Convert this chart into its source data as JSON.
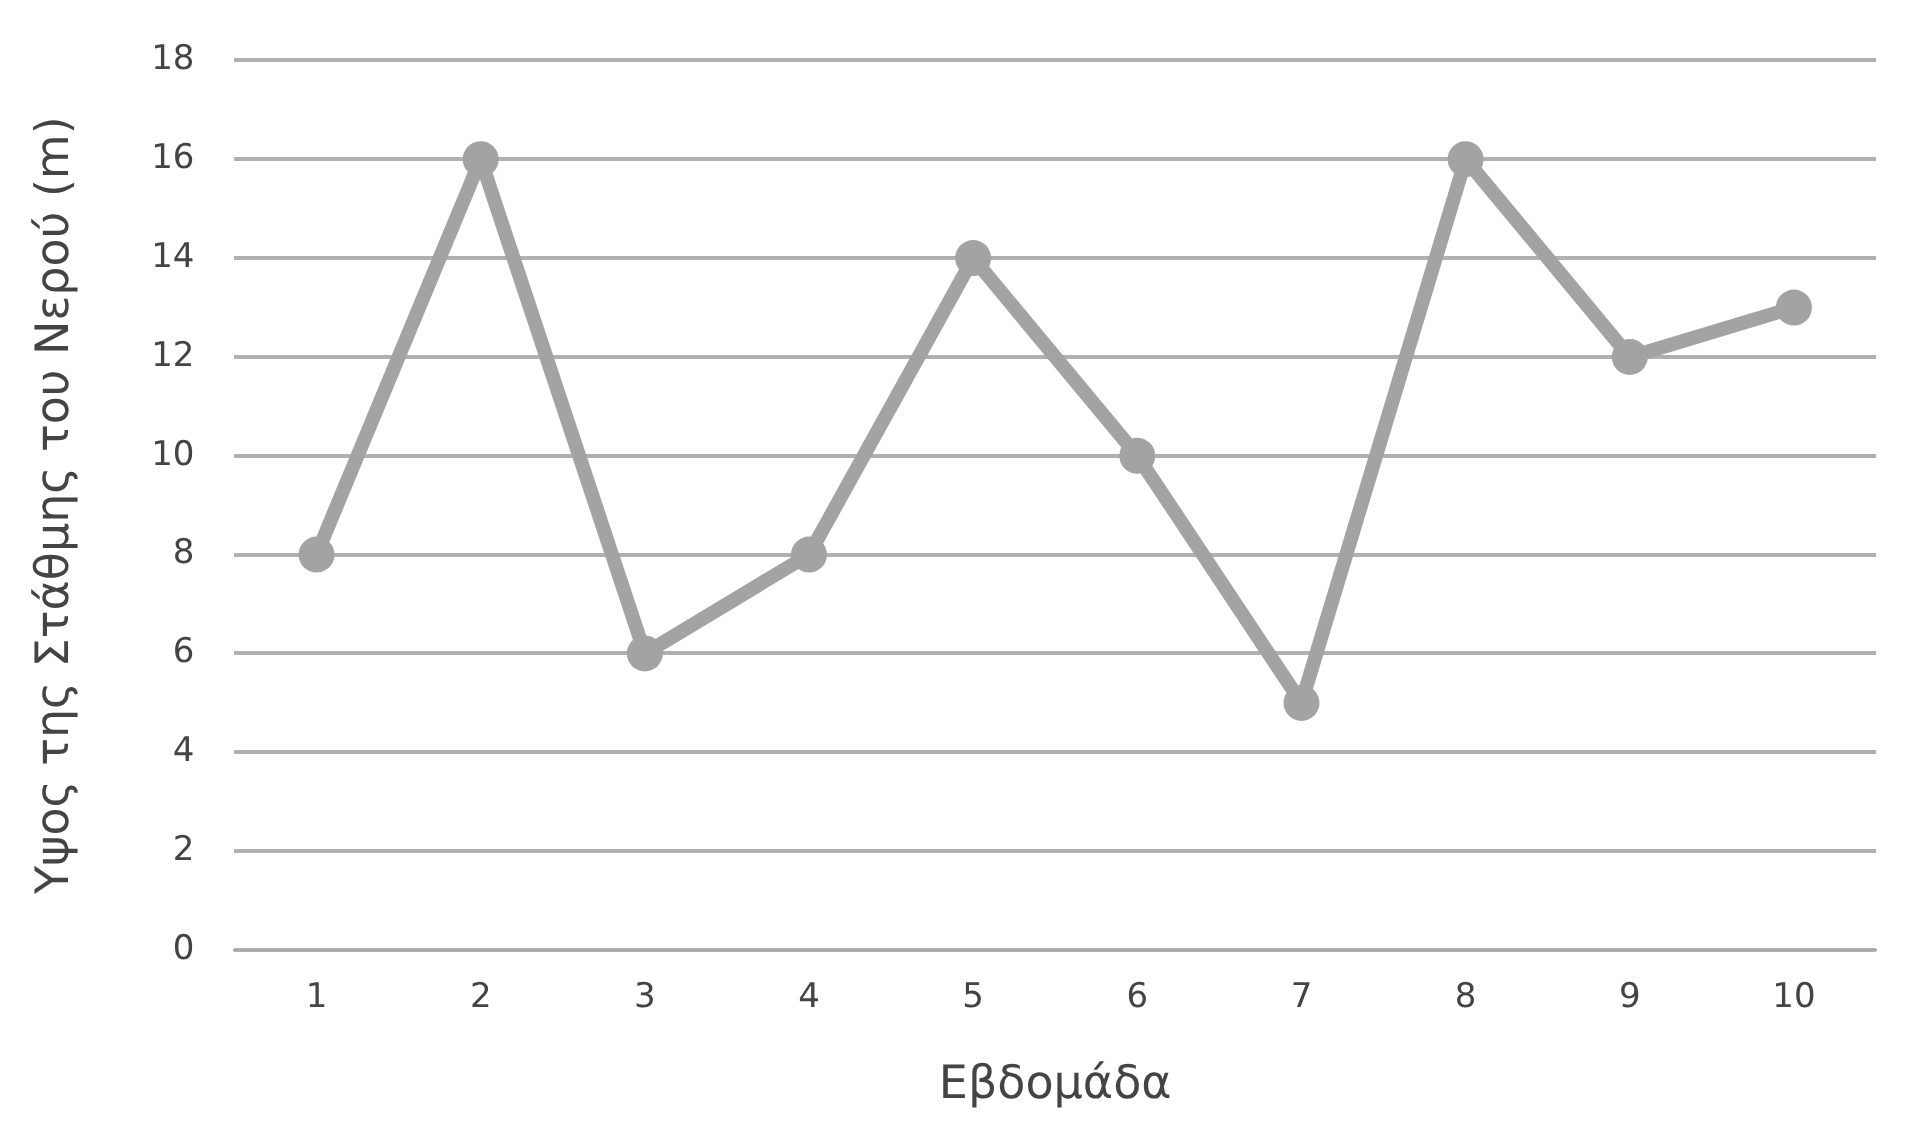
{
  "chart_data": {
    "type": "line",
    "xlabel": "Εβδομάδα",
    "ylabel": "Υψος της Στάθμης του Νερού (m)",
    "categories": [
      "1",
      "2",
      "3",
      "4",
      "5",
      "6",
      "7",
      "8",
      "9",
      "10"
    ],
    "series": [
      {
        "color": "#a3a3a3",
        "values": [
          8,
          16,
          6,
          8,
          14,
          10,
          5,
          16,
          12,
          13
        ]
      }
    ],
    "ylim": [
      0,
      18
    ],
    "yticks": [
      0,
      2,
      4,
      6,
      8,
      10,
      12,
      14,
      16,
      18
    ],
    "grid": "y",
    "marker": "circle",
    "line_style": "solid",
    "legend": false
  }
}
